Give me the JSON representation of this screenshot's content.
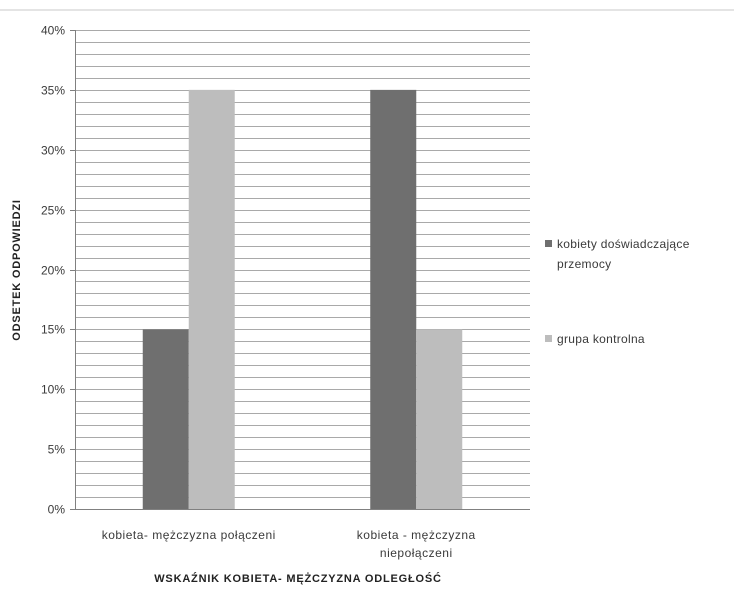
{
  "chart_data": {
    "type": "bar",
    "categories": [
      [
        "kobieta- mężczyzna połączeni"
      ],
      [
        "kobieta - mężczyzna",
        "niepołączeni"
      ]
    ],
    "series": [
      {
        "name": [
          "kobiety doświadczające",
          "przemocy"
        ],
        "values": [
          15,
          35
        ],
        "color": "#6f6f6f"
      },
      {
        "name": [
          "grupa kontrolna"
        ],
        "values": [
          35,
          15
        ],
        "color": "#bdbdbd"
      }
    ],
    "xlabel": "WSKAŹNIK KOBIETA- MĘŻCZYZNA ODLEGŁOŚĆ",
    "ylabel": "ODSETEK ODPOWIEDZI",
    "ylim": [
      0,
      40
    ],
    "yticks": [
      0,
      5,
      10,
      15,
      20,
      25,
      30,
      35,
      40
    ],
    "yminor_step": 1,
    "ytick_format": "%",
    "grid": true,
    "legend": "right",
    "colors": {
      "grid": "#a9a9a9",
      "axis": "#808080",
      "frame": "#c8c8c8"
    }
  }
}
